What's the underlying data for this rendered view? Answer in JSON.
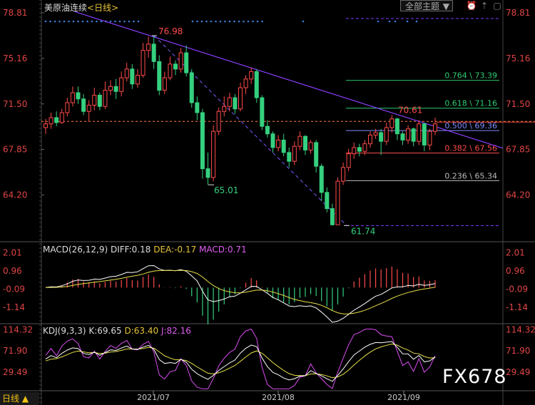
{
  "header": {
    "symbol": "美原油连续",
    "period": "<日线>",
    "theme_button": "全部主题"
  },
  "macd_header": {
    "name": "MACD(26,12,9)",
    "diff": "DIFF:0.18",
    "dea": "DEA:-0.17",
    "macd": "MACD:0.71"
  },
  "kdj_header": {
    "name": "KDJ(9,3,3)",
    "k": "K:69.65",
    "d": "D:63.40",
    "j": "J:82.16"
  },
  "bottom_label": "日线 ▲",
  "watermark": "FX678",
  "colors": {
    "up": "#ff4b4b",
    "down": "#35d07f",
    "axis_text": "#e04545",
    "trend": "#8a3ffc",
    "dash": "#ff7f3f"
  },
  "chart_data": [
    {
      "type": "candlestick",
      "yaxis_ticks": [
        "78.81",
        "75.16",
        "71.50",
        "67.85",
        "64.20"
      ],
      "ylim": [
        60.5,
        78.81
      ],
      "x_ticks": [
        "2021/07",
        "2021/08",
        "2021/09"
      ],
      "annotations": {
        "high": "76.98",
        "low1": "65.01",
        "low2": "61.74",
        "recent_high": "70.61"
      },
      "fib_levels": [
        {
          "label": "0.764 \\ 73.39",
          "value": 73.39,
          "color": "#2ecc71"
        },
        {
          "label": "0.618 \\ 71.16",
          "value": 71.16,
          "color": "#2ecc71"
        },
        {
          "label": "0.500 \\ 69.36",
          "value": 69.36,
          "color": "#7f8cff"
        },
        {
          "label": "0.382 \\ 67.56",
          "value": 67.56,
          "color": "#ff4b4b"
        },
        {
          "label": "0.236 \\ 65.34",
          "value": 65.34,
          "color": "#bbbbbb"
        }
      ],
      "candles": [
        [
          69.6,
          69.9,
          69.1,
          70.3
        ],
        [
          69.9,
          70.4,
          69.5,
          70.8
        ],
        [
          70.4,
          70.0,
          69.7,
          70.9
        ],
        [
          70.0,
          70.8,
          69.9,
          71.1
        ],
        [
          70.8,
          71.6,
          70.5,
          72.0
        ],
        [
          71.6,
          72.4,
          71.3,
          72.9
        ],
        [
          72.4,
          71.9,
          71.5,
          72.9
        ],
        [
          71.9,
          70.9,
          70.6,
          72.3
        ],
        [
          70.9,
          71.4,
          70.1,
          71.8
        ],
        [
          71.4,
          72.2,
          71.0,
          72.8
        ],
        [
          72.2,
          71.3,
          71.0,
          72.4
        ],
        [
          71.3,
          72.6,
          71.1,
          73.3
        ],
        [
          72.6,
          72.9,
          72.2,
          73.4
        ],
        [
          72.9,
          72.5,
          71.9,
          73.5
        ],
        [
          72.5,
          73.6,
          72.1,
          74.1
        ],
        [
          73.6,
          74.3,
          73.3,
          74.8
        ],
        [
          74.3,
          73.1,
          72.7,
          74.7
        ],
        [
          73.1,
          73.8,
          72.8,
          74.3
        ],
        [
          73.8,
          75.8,
          73.6,
          76.4
        ],
        [
          75.8,
          76.3,
          75.2,
          76.9
        ],
        [
          76.3,
          74.9,
          74.3,
          76.98
        ],
        [
          74.9,
          72.6,
          72.2,
          75.4
        ],
        [
          72.6,
          73.6,
          72.3,
          74.1
        ],
        [
          73.6,
          74.7,
          73.4,
          75.3
        ],
        [
          74.7,
          74.3,
          73.8,
          75.0
        ],
        [
          74.3,
          75.6,
          74.0,
          76.0
        ],
        [
          75.6,
          74.0,
          73.7,
          76.2
        ],
        [
          74.0,
          71.6,
          71.2,
          74.3
        ],
        [
          71.6,
          70.8,
          70.2,
          72.1
        ],
        [
          70.8,
          66.3,
          65.5,
          71.1
        ],
        [
          66.3,
          65.6,
          65.01,
          67.6
        ],
        [
          65.6,
          69.3,
          65.3,
          69.8
        ],
        [
          69.3,
          70.9,
          69.0,
          71.2
        ],
        [
          70.9,
          71.3,
          70.5,
          72.1
        ],
        [
          71.3,
          72.0,
          70.9,
          72.4
        ],
        [
          72.0,
          71.1,
          70.7,
          72.3
        ],
        [
          71.1,
          72.8,
          70.9,
          73.2
        ],
        [
          72.8,
          73.5,
          72.3,
          73.8
        ],
        [
          73.5,
          74.1,
          73.1,
          74.4
        ],
        [
          74.1,
          72.0,
          71.6,
          74.3
        ],
        [
          72.0,
          69.7,
          69.4,
          72.2
        ],
        [
          69.7,
          69.1,
          68.8,
          70.2
        ],
        [
          69.1,
          68.0,
          67.6,
          69.3
        ],
        [
          68.0,
          68.6,
          67.7,
          69.0
        ],
        [
          68.6,
          67.6,
          67.3,
          69.1
        ],
        [
          67.6,
          66.9,
          66.4,
          68.0
        ],
        [
          66.9,
          68.1,
          66.6,
          68.5
        ],
        [
          68.1,
          68.9,
          67.8,
          69.3
        ],
        [
          68.9,
          67.8,
          67.4,
          69.0
        ],
        [
          67.8,
          68.4,
          67.5,
          68.6
        ],
        [
          68.4,
          66.5,
          66.0,
          68.6
        ],
        [
          66.5,
          64.4,
          63.7,
          66.7
        ],
        [
          64.4,
          63.1,
          62.8,
          64.8
        ],
        [
          63.1,
          61.8,
          61.74,
          63.5
        ],
        [
          61.8,
          65.3,
          61.9,
          65.6
        ],
        [
          65.3,
          66.4,
          65.0,
          66.8
        ],
        [
          66.4,
          67.5,
          66.1,
          67.9
        ],
        [
          67.5,
          68.0,
          67.1,
          68.4
        ],
        [
          68.0,
          67.7,
          67.3,
          68.3
        ],
        [
          67.7,
          68.3,
          67.4,
          68.6
        ],
        [
          68.3,
          69.0,
          68.0,
          69.3
        ],
        [
          69.0,
          69.2,
          68.7,
          69.5
        ],
        [
          69.2,
          68.5,
          67.4,
          69.5
        ],
        [
          68.5,
          69.6,
          68.2,
          70.0
        ],
        [
          69.6,
          70.3,
          69.2,
          70.61
        ],
        [
          70.3,
          69.1,
          68.6,
          70.4
        ],
        [
          69.1,
          68.6,
          68.2,
          69.3
        ],
        [
          68.6,
          69.5,
          68.3,
          69.8
        ],
        [
          69.5,
          68.5,
          68.1,
          69.6
        ],
        [
          68.5,
          69.9,
          68.2,
          70.2
        ],
        [
          69.9,
          68.2,
          67.7,
          70.0
        ],
        [
          68.2,
          69.3,
          67.8,
          69.5
        ],
        [
          69.3,
          69.9,
          69.0,
          70.4
        ]
      ]
    },
    {
      "type": "bar",
      "name": "MACD(26,12,9)",
      "yaxis_ticks": [
        "2.01",
        "0.96",
        "-0.09",
        "-1.14"
      ],
      "ylim": [
        -2.0,
        2.6
      ]
    },
    {
      "type": "line",
      "name": "KDJ(9,3,3)",
      "yaxis_ticks": [
        "114.32",
        "71.90",
        "29.49"
      ],
      "ylim": [
        -5,
        125
      ]
    }
  ]
}
